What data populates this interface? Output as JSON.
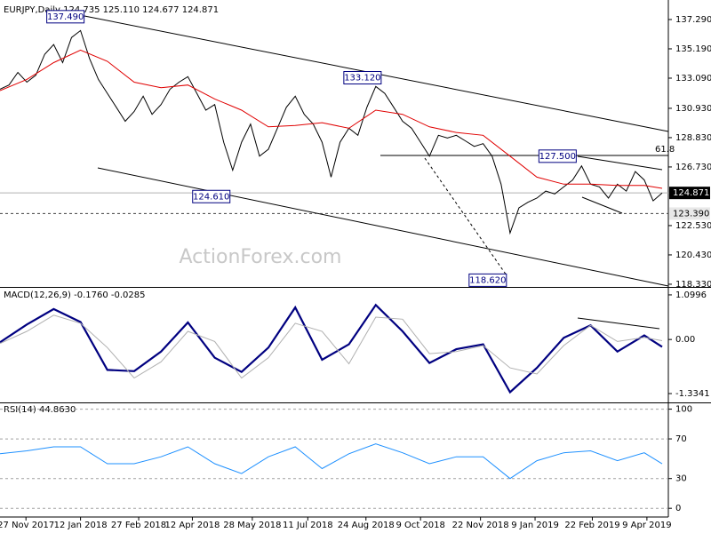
{
  "chart_data": [
    {
      "type": "line",
      "title": "EURJPY,Daily  124.735 125.110 124.677 124.871",
      "xlim": [
        0,
        74
      ],
      "ylim": [
        118.2,
        138.37
      ],
      "yticks": [
        {
          "value": 137.29,
          "label": "137.290"
        },
        {
          "value": 135.19,
          "label": "135.190"
        },
        {
          "value": 133.09,
          "label": "133.090"
        },
        {
          "value": 130.93,
          "label": "130.930"
        },
        {
          "value": 128.83,
          "label": "128.830"
        },
        {
          "value": 126.73,
          "label": "126.730"
        },
        {
          "value": 122.53,
          "label": "122.530"
        },
        {
          "value": 120.43,
          "label": "120.430"
        },
        {
          "value": 118.33,
          "label": "118.330"
        }
      ],
      "series": [
        {
          "color": "#000000",
          "width": 1,
          "x": [
            0,
            1,
            2,
            3,
            4,
            5,
            6,
            7,
            8,
            9,
            10,
            11,
            12,
            13,
            14,
            15,
            16,
            17,
            18,
            19,
            20,
            21,
            22,
            23,
            24,
            25,
            26,
            27,
            28,
            29,
            30,
            31,
            32,
            33,
            34,
            35,
            36,
            37,
            38,
            39,
            40,
            41,
            42,
            43,
            44,
            45,
            46,
            47,
            48,
            49,
            50,
            51,
            52,
            53,
            54,
            55,
            56,
            57,
            58,
            59,
            60,
            61,
            62,
            63,
            64,
            65,
            66,
            67,
            68,
            69,
            70,
            71,
            72,
            73,
            74
          ],
          "values": [
            132.3,
            132.6,
            133.5,
            132.8,
            133.3,
            134.8,
            135.5,
            134.2,
            136.0,
            136.5,
            134.5,
            133.0,
            132.0,
            131.0,
            130.0,
            130.7,
            131.8,
            130.5,
            131.2,
            132.3,
            132.8,
            133.2,
            132.0,
            130.8,
            131.2,
            128.5,
            126.5,
            128.5,
            129.8,
            127.5,
            128.0,
            129.5,
            131.0,
            131.8,
            130.5,
            129.8,
            128.5,
            126.0,
            128.5,
            129.5,
            129.0,
            131.0,
            132.5,
            132.0,
            131.0,
            130.0,
            129.5,
            128.5,
            127.5,
            129.0,
            128.8,
            129.0,
            128.6,
            128.2,
            128.4,
            127.5,
            125.5,
            122.0,
            123.8,
            124.2,
            124.5,
            125.0,
            124.8,
            125.3,
            125.8,
            126.8,
            125.5,
            125.3,
            124.5,
            125.5,
            125.0,
            126.4,
            125.8,
            124.3,
            124.871
          ]
        },
        {
          "color": "#e00000",
          "width": 1,
          "x": [
            0,
            3,
            6,
            9,
            12,
            15,
            18,
            21,
            24,
            27,
            30,
            33,
            36,
            39,
            42,
            45,
            48,
            51,
            54,
            57,
            60,
            63,
            66,
            69,
            72,
            74
          ],
          "values": [
            132.2,
            133.0,
            134.2,
            135.1,
            134.3,
            132.8,
            132.4,
            132.6,
            131.6,
            130.8,
            129.6,
            129.7,
            129.9,
            129.5,
            130.8,
            130.5,
            129.6,
            129.2,
            129.0,
            127.5,
            126.0,
            125.5,
            125.5,
            125.4,
            125.4,
            125.2
          ]
        }
      ],
      "levels": [
        {
          "value": 124.871,
          "label": "124.871",
          "dashed": false
        },
        {
          "value": 123.39,
          "label": "123.390",
          "dashed": true
        }
      ],
      "annotations": [
        {
          "x": 9.4,
          "value": 137.49,
          "label": "137.490"
        },
        {
          "x": 42.6,
          "value": 133.12,
          "label": "133.120"
        },
        {
          "x": 64.4,
          "value": 127.5,
          "label": "127.500"
        },
        {
          "x": 25.7,
          "value": 124.61,
          "label": "124.610"
        },
        {
          "x": 56.6,
          "value": 118.62,
          "label": "118.620"
        }
      ],
      "fib_label": "61.8"
    },
    {
      "type": "line",
      "title": "MACD(12,26,9) -0.1760 -0.0285",
      "xlim": [
        0,
        74
      ],
      "ylim": [
        -1.53,
        1.23
      ],
      "yticks": [
        1.0996,
        {
          "value": 0,
          "label": "0.00"
        },
        -1.3341
      ],
      "grid": false,
      "series": [
        {
          "color": "#000080",
          "width": 2.2,
          "x": [
            0,
            3,
            6,
            9,
            12,
            15,
            18,
            21,
            24,
            27,
            30,
            33,
            36,
            39,
            42,
            45,
            48,
            51,
            54,
            57,
            60,
            63,
            66,
            69,
            72,
            74
          ],
          "values": [
            -0.07,
            0.37,
            0.75,
            0.43,
            -0.75,
            -0.78,
            -0.3,
            0.42,
            -0.45,
            -0.8,
            -0.2,
            0.79,
            -0.5,
            -0.12,
            0.85,
            0.2,
            -0.58,
            -0.24,
            -0.12,
            -1.3,
            -0.7,
            0.04,
            0.35,
            -0.3,
            0.1,
            -0.18
          ]
        },
        {
          "color": "#b0b0b0",
          "width": 1,
          "x": [
            0,
            3,
            6,
            9,
            12,
            15,
            18,
            21,
            24,
            27,
            30,
            33,
            36,
            39,
            42,
            45,
            48,
            51,
            54,
            57,
            60,
            63,
            66,
            69,
            72,
            74
          ],
          "values": [
            -0.1,
            0.2,
            0.6,
            0.4,
            -0.2,
            -0.95,
            -0.55,
            0.2,
            -0.05,
            -0.95,
            -0.45,
            0.4,
            0.2,
            -0.6,
            0.55,
            0.5,
            -0.35,
            -0.3,
            -0.15,
            -0.7,
            -0.85,
            -0.15,
            0.35,
            -0.05,
            0.05,
            -0.03
          ]
        }
      ]
    },
    {
      "type": "line",
      "title": "RSI(14) 44.8630",
      "xlim": [
        0,
        74
      ],
      "ylim": [
        -7,
        105
      ],
      "yticks": [
        100,
        70,
        30,
        0
      ],
      "grid": true,
      "xticks": [
        {
          "value": 2.9,
          "label": "27 Nov 2017"
        },
        {
          "value": 9.0,
          "label": "12 Jan 2018"
        },
        {
          "value": 15.5,
          "label": "27 Feb 2018"
        },
        {
          "value": 21.5,
          "label": "12 Apr 2018"
        },
        {
          "value": 28.2,
          "label": "28 May 2018"
        },
        {
          "value": 34.4,
          "label": "11 Jul 2018"
        },
        {
          "value": 40.9,
          "label": "24 Aug 2018"
        },
        {
          "value": 47.0,
          "label": "9 Oct 2018"
        },
        {
          "value": 53.7,
          "label": "22 Nov 2018"
        },
        {
          "value": 59.8,
          "label": "9 Jan 2019"
        },
        {
          "value": 66.2,
          "label": "22 Feb 2019"
        },
        {
          "value": 72.3,
          "label": "9 Apr 2019"
        }
      ],
      "series": [
        {
          "color": "#1e90ff",
          "width": 1,
          "x": [
            0,
            3,
            6,
            9,
            12,
            15,
            18,
            21,
            24,
            27,
            30,
            33,
            36,
            39,
            42,
            45,
            48,
            51,
            54,
            57,
            60,
            63,
            66,
            69,
            72,
            74
          ],
          "values": [
            55,
            58,
            62,
            62,
            45,
            45,
            52,
            62,
            45,
            35,
            52,
            62,
            40,
            55,
            65,
            56,
            45,
            52,
            52,
            30,
            48,
            56,
            58,
            48,
            56,
            44.863
          ]
        }
      ]
    }
  ],
  "watermark": "ActionForex.com"
}
